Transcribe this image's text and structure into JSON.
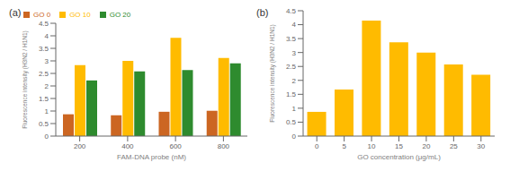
{
  "chart_data": [
    {
      "type": "bar",
      "title": "(a)",
      "categories": [
        "200",
        "400",
        "600",
        "800"
      ],
      "series": [
        {
          "name": "GO 0",
          "color": "#CC6622",
          "values": [
            0.87,
            0.83,
            0.97,
            1.01
          ]
        },
        {
          "name": "GO 10",
          "color": "#FFBB00",
          "values": [
            2.83,
            3.0,
            3.92,
            3.12
          ]
        },
        {
          "name": "GO 20",
          "color": "#2E8B2E",
          "values": [
            2.22,
            2.58,
            2.63,
            2.9
          ]
        }
      ],
      "xlabel": "FAM-DNA probe (nM)",
      "ylabel": "Fluorescence intensity (H3N2 / H1N1)",
      "ylim": [
        0,
        4.5
      ],
      "yticks": [
        0,
        0.5,
        1,
        1.5,
        2,
        2.5,
        3,
        3.5,
        4,
        4.5
      ],
      "legend": "upper left"
    },
    {
      "type": "bar",
      "title": "(b)",
      "categories": [
        "0",
        "5",
        "10",
        "15",
        "20",
        "25",
        "30"
      ],
      "values": [
        0.87,
        1.67,
        4.15,
        3.37,
        3.0,
        2.57,
        2.2
      ],
      "color": "#FFBB00",
      "xlabel": "GO concentration (μg/mL)",
      "ylabel": "Fluorescence intensity (H3N2 / H1N1)",
      "ylim": [
        0,
        4.5
      ],
      "yticks": [
        0,
        0.5,
        1,
        1.5,
        2,
        2.5,
        3,
        3.5,
        4,
        4.5
      ]
    }
  ]
}
